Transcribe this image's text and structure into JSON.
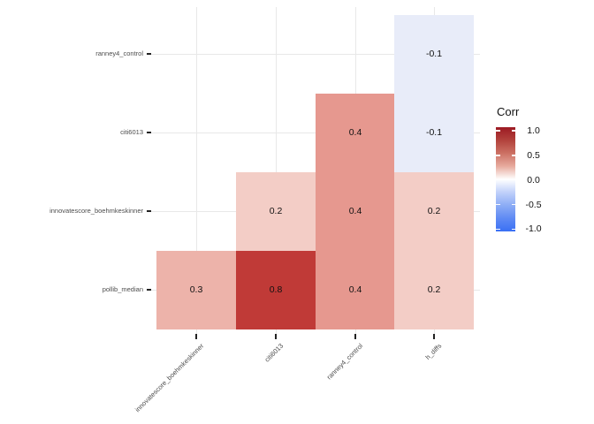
{
  "chart_data": {
    "type": "heatmap",
    "variant": "correlation-matrix-lower-triangle",
    "title": "",
    "x_categories": [
      "innovatescore_boehmkeskinner",
      "citi6013",
      "ranney4_control",
      "h_diffs"
    ],
    "y_categories": [
      "ranney4_control",
      "citi6013",
      "innovatescore_boehmkeskinner",
      "pollib_median"
    ],
    "cells": [
      {
        "row": "ranney4_control",
        "col": "h_diffs",
        "value": -0.1,
        "label": "-0.1",
        "color": "#E8ECF9"
      },
      {
        "row": "citi6013",
        "col": "ranney4_control",
        "value": 0.4,
        "label": "0.4",
        "color": "#E6988F"
      },
      {
        "row": "citi6013",
        "col": "h_diffs",
        "value": -0.1,
        "label": "-0.1",
        "color": "#E8ECF9"
      },
      {
        "row": "innovatescore_boehmkeskinner",
        "col": "citi6013",
        "value": 0.2,
        "label": "0.2",
        "color": "#F3CDC6"
      },
      {
        "row": "innovatescore_boehmkeskinner",
        "col": "ranney4_control",
        "value": 0.4,
        "label": "0.4",
        "color": "#E6988F"
      },
      {
        "row": "innovatescore_boehmkeskinner",
        "col": "h_diffs",
        "value": 0.2,
        "label": "0.2",
        "color": "#F3CDC6"
      },
      {
        "row": "pollib_median",
        "col": "innovatescore_boehmkeskinner",
        "value": 0.3,
        "label": "0.3",
        "color": "#EDB3AA"
      },
      {
        "row": "pollib_median",
        "col": "citi6013",
        "value": 0.8,
        "label": "0.8",
        "color": "#C03A37"
      },
      {
        "row": "pollib_median",
        "col": "ranney4_control",
        "value": 0.4,
        "label": "0.4",
        "color": "#E6988F"
      },
      {
        "row": "pollib_median",
        "col": "h_diffs",
        "value": 0.2,
        "label": "0.2",
        "color": "#F3CDC6"
      }
    ],
    "legend": {
      "title": "Corr",
      "position": "right",
      "limits": [
        -1,
        1
      ],
      "tick_values": [
        1,
        0.5,
        0,
        -0.5,
        -1
      ],
      "tick_labels": [
        "1.0",
        "0.5",
        "0.0",
        "-0.5",
        "-1.0"
      ],
      "gradient_stops": [
        "#9C1A23 0%",
        "#B2423C 12.5%",
        "#CC7164 25%",
        "#E7AB9E 37.5%",
        "#FFFFFF 50%",
        "#C0D0FA 62.5%",
        "#8CACF5 75%",
        "#5F8AF4 87.5%",
        "#3A70F4 100%"
      ]
    },
    "style": {
      "background": "#FFFFFF",
      "grid": true,
      "grid_color": "#E8E8E8",
      "axis_tick_color": "#222222",
      "axis_text_color": "#4D4D4D",
      "cell_text_color": "#111111",
      "high_color": "#9C1A23",
      "mid_color": "#FFFFFF",
      "low_color": "#3A70F4"
    }
  }
}
